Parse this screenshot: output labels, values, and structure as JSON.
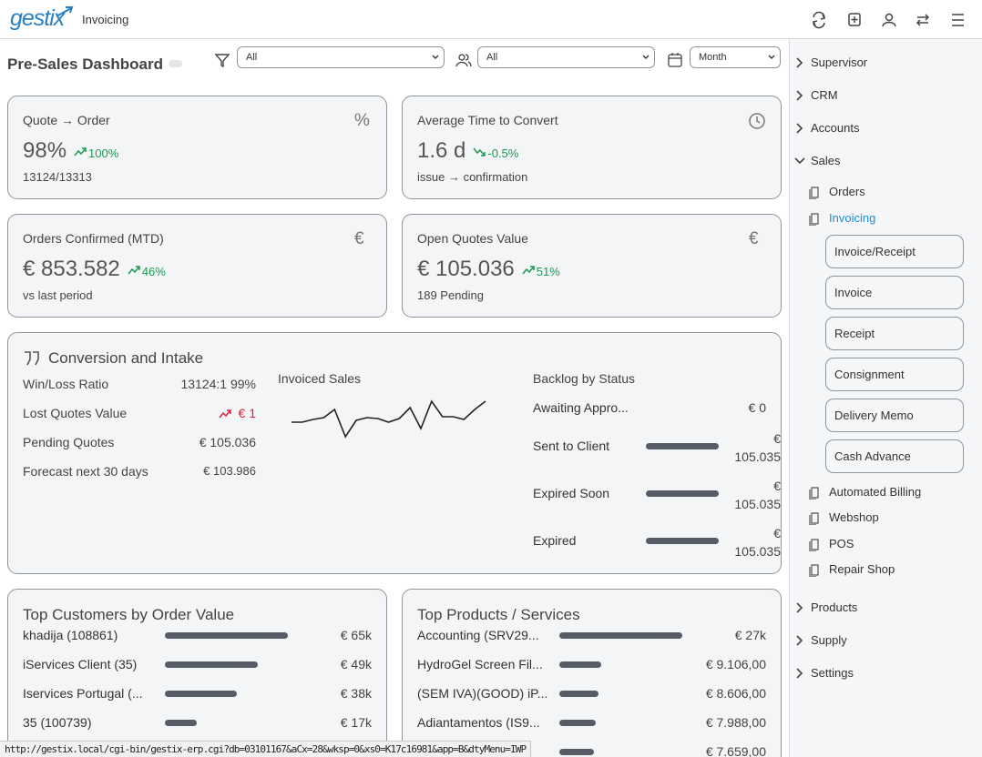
{
  "header": {
    "logo": "gestix",
    "module": "Invoicing"
  },
  "toolbar": {
    "title": "Pre-Sales Dashboard",
    "filters": [
      "All",
      "All",
      "Month"
    ]
  },
  "kpis": [
    {
      "title": "Quote → Order",
      "icon": "%",
      "value": "98%",
      "trend": "100%",
      "trend_icon": "up",
      "note": "13124/13313"
    },
    {
      "title": "Average Time to Convert",
      "value": "1.6 d",
      "trend": "-0.5%",
      "trend_icon": "down",
      "note": "issue → confirmation"
    },
    {
      "title": "Orders Confirmed (MTD)",
      "icon": "€",
      "value": "€ 853.582",
      "trend": "46%",
      "trend_icon": "up",
      "note": "vs last period"
    },
    {
      "title": "Open Quotes Value",
      "icon": "€",
      "value": "€ 105.036",
      "trend": "51%",
      "trend_icon": "up",
      "note": "189 Pending"
    }
  ],
  "conversion": {
    "title": "Conversion and Intake",
    "metrics": [
      {
        "label": "Win/Loss Ratio",
        "value": "13124:1 99%"
      },
      {
        "label": "Lost Quotes Value",
        "value": "€ 1",
        "color": "#d9263c"
      },
      {
        "label": "Pending Quotes",
        "value": "€ 105.036"
      },
      {
        "label": "Forecast next 30 days",
        "value": "€ 103.986"
      }
    ],
    "sales": {
      "title": "Invoiced Sales",
      "values": [
        16,
        16,
        19,
        21,
        30,
        0,
        18,
        21,
        20,
        16,
        20,
        32,
        9,
        39,
        22,
        22,
        19,
        30,
        39
      ]
    },
    "backlog": {
      "title": "Backlog by Status",
      "rows": [
        {
          "label": "Awaiting Appro...",
          "value": 0,
          "value_label": "€ 0"
        },
        {
          "label": "Sent to Client",
          "value": 105035,
          "value_label": "€ 105.035"
        },
        {
          "label": "Expired Soon",
          "value": 105035,
          "value_label": "€ 105.035"
        },
        {
          "label": "Expired",
          "value": 105035,
          "value_label": "€ 105.035"
        }
      ]
    }
  },
  "top_customers": {
    "title": "Top Customers by Order Value",
    "rows": [
      {
        "label": "khadija (108861)",
        "value": 65000,
        "value_label": "€ 65k"
      },
      {
        "label": "iServices Client (35)",
        "value": 49000,
        "value_label": "€ 49k"
      },
      {
        "label": "Iservices Portugal (...",
        "value": 38000,
        "value_label": "€ 38k"
      },
      {
        "label": "35 (100739)",
        "value": 17000,
        "value_label": "€ 17k"
      }
    ]
  },
  "top_products": {
    "title": "Top Products / Services",
    "rows": [
      {
        "label": "Accounting (SRV29...",
        "value": 27000,
        "value_label": "€ 27k"
      },
      {
        "label": "HydroGel Screen Fil...",
        "value": 9106,
        "value_label": "€ 9.106,00"
      },
      {
        "label": "(SEM IVA)(GOOD) iP...",
        "value": 8606,
        "value_label": "€ 8.606,00"
      },
      {
        "label": "Adiantamentos (IS9...",
        "value": 7988,
        "value_label": "€ 7.988,00"
      },
      {
        "label": null,
        "value": 7659,
        "value_label": "€ 7.659,00"
      }
    ]
  },
  "sidebar": {
    "items": [
      {
        "label": "Supervisor"
      },
      {
        "label": "CRM"
      },
      {
        "label": "Accounts"
      },
      {
        "label": "Sales",
        "children": [
          {
            "label": "Orders"
          },
          {
            "label": "Invoicing",
            "active": true,
            "children": [
              "Invoice/Receipt",
              "Invoice",
              "Receipt",
              "Consignment",
              "Delivery Memo",
              "Cash Advance"
            ]
          },
          {
            "label": "Automated Billing"
          },
          {
            "label": "Webshop"
          },
          {
            "label": "POS"
          },
          {
            "label": "Repair Shop"
          }
        ]
      },
      {
        "label": "Products"
      },
      {
        "label": "Supply"
      },
      {
        "label": "Settings"
      }
    ]
  },
  "status_url": "http://gestix.local/cgi-bin/gestix-erp.cgi?db=03101167&aCx=28&wksp=0&xs0=K17c16981&app=B&dtyMenu=IWP"
}
